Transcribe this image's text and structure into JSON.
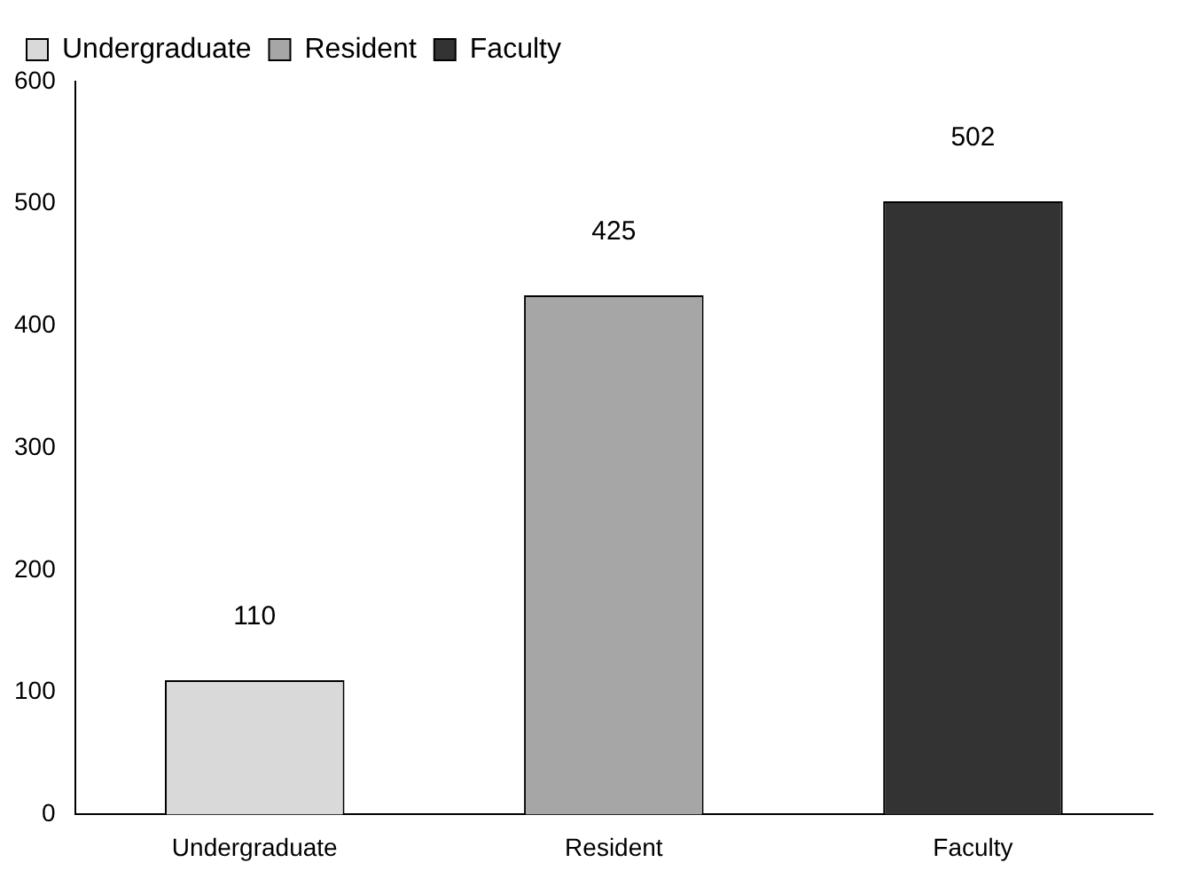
{
  "chart_data": {
    "type": "bar",
    "categories": [
      "Undergraduate",
      "Resident",
      "Faculty"
    ],
    "series": [
      {
        "name": "Undergraduate",
        "color": "#d9d9d9",
        "values": [
          110,
          null,
          null
        ]
      },
      {
        "name": "Resident",
        "color": "#a6a6a6",
        "values": [
          null,
          425,
          null
        ]
      },
      {
        "name": "Faculty",
        "color": "#333333",
        "values": [
          null,
          null,
          502
        ]
      }
    ],
    "ylim": [
      0,
      600
    ],
    "yticks": [
      0,
      100,
      200,
      300,
      400,
      500,
      600
    ],
    "grid": false,
    "legend": "top left",
    "data_labels": true
  }
}
